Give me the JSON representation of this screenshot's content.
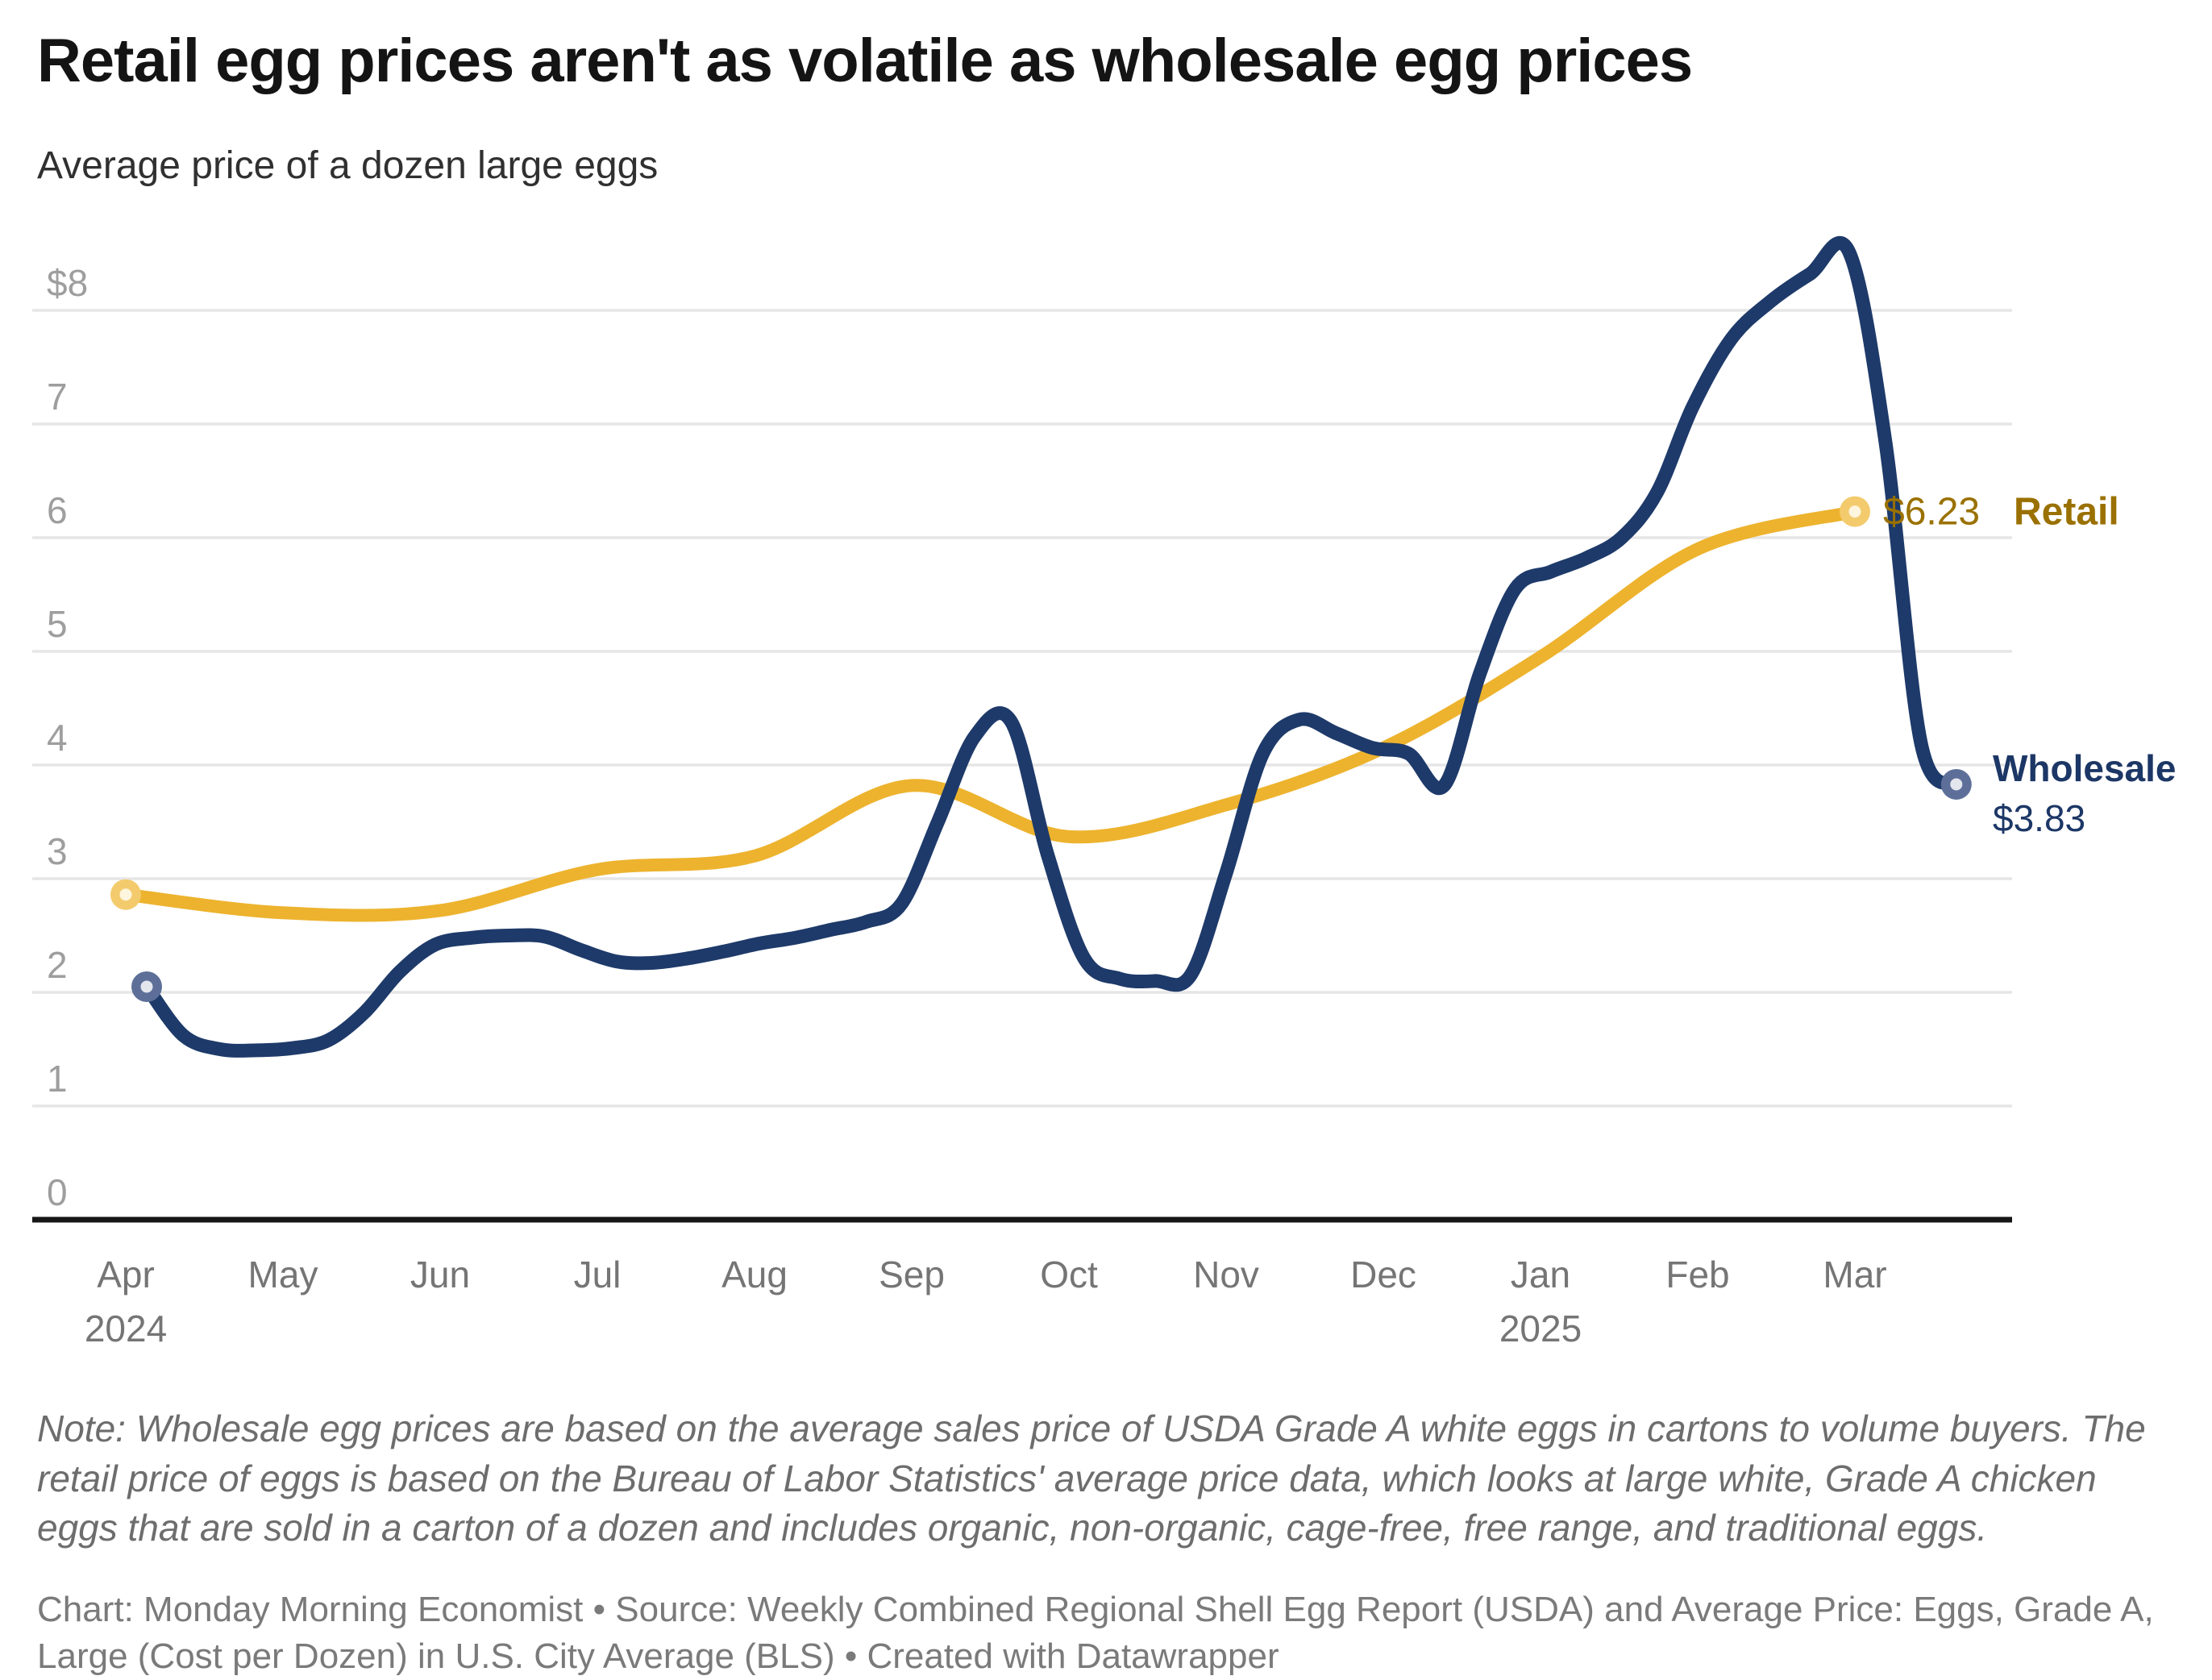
{
  "header": {
    "title": "Retail egg prices aren't as volatile as wholesale egg prices",
    "subtitle": "Average price of a dozen large eggs"
  },
  "chart_data": {
    "type": "line",
    "title": "Retail egg prices aren't as volatile as wholesale egg prices",
    "subtitle": "Average price of a dozen large eggs",
    "unit": "US dollars per dozen large eggs",
    "grid": "horizontal",
    "ylim": [
      0,
      8.6
    ],
    "y_axis": {
      "ticks": [
        0,
        1,
        2,
        3,
        4,
        5,
        6,
        7,
        8
      ],
      "labels": [
        "0",
        "1",
        "2",
        "3",
        "4",
        "5",
        "6",
        "7",
        "$8"
      ]
    },
    "x_axis": {
      "months": [
        {
          "label": "Apr",
          "year": "2024"
        },
        {
          "label": "May",
          "year": ""
        },
        {
          "label": "Jun",
          "year": ""
        },
        {
          "label": "Jul",
          "year": ""
        },
        {
          "label": "Aug",
          "year": ""
        },
        {
          "label": "Sep",
          "year": ""
        },
        {
          "label": "Oct",
          "year": ""
        },
        {
          "label": "Nov",
          "year": ""
        },
        {
          "label": "Dec",
          "year": ""
        },
        {
          "label": "Jan",
          "year": "2025"
        },
        {
          "label": "Feb",
          "year": ""
        },
        {
          "label": "Mar",
          "year": ""
        }
      ]
    },
    "series": [
      {
        "name": "Retail",
        "frequency": "monthly",
        "color": "#edb32e",
        "dot_ring_color": "#f3cb6d",
        "dot_core_color": "#fdf5de",
        "label_color": "#9a7100",
        "end_label_value": "$6.23",
        "end_label_name": "Retail",
        "points": [
          [
            "2024-04",
            2.86
          ],
          [
            "2024-05",
            2.7
          ],
          [
            "2024-06",
            2.72
          ],
          [
            "2024-07",
            3.08
          ],
          [
            "2024-08",
            3.2
          ],
          [
            "2024-09",
            3.82
          ],
          [
            "2024-10",
            3.37
          ],
          [
            "2024-11",
            3.65
          ],
          [
            "2024-12",
            4.15
          ],
          [
            "2025-01",
            4.95
          ],
          [
            "2025-02",
            5.9
          ],
          [
            "2025-03",
            6.23
          ]
        ]
      },
      {
        "name": "Wholesale",
        "frequency": "weekly",
        "color": "#1e3a6a",
        "dot_ring_color": "#5d6f99",
        "dot_core_color": "#e4e6ee",
        "label_color": "#1c3766",
        "end_label_value": "$3.83",
        "end_label_name": "Wholesale",
        "points": [
          [
            "2024-04-05",
            2.05
          ],
          [
            "2024-04-12",
            1.62
          ],
          [
            "2024-04-19",
            1.5
          ],
          [
            "2024-04-26",
            1.49
          ],
          [
            "2024-05-03",
            1.51
          ],
          [
            "2024-05-10",
            1.58
          ],
          [
            "2024-05-17",
            1.82
          ],
          [
            "2024-05-24",
            2.18
          ],
          [
            "2024-05-31",
            2.42
          ],
          [
            "2024-06-07",
            2.48
          ],
          [
            "2024-06-14",
            2.5
          ],
          [
            "2024-06-21",
            2.49
          ],
          [
            "2024-06-28",
            2.37
          ],
          [
            "2024-07-05",
            2.27
          ],
          [
            "2024-07-12",
            2.26
          ],
          [
            "2024-07-19",
            2.3
          ],
          [
            "2024-07-26",
            2.36
          ],
          [
            "2024-08-02",
            2.43
          ],
          [
            "2024-08-09",
            2.48
          ],
          [
            "2024-08-16",
            2.55
          ],
          [
            "2024-08-23",
            2.62
          ],
          [
            "2024-08-30",
            2.78
          ],
          [
            "2024-09-06",
            3.5
          ],
          [
            "2024-09-13",
            4.25
          ],
          [
            "2024-09-20",
            4.38
          ],
          [
            "2024-09-27",
            3.2
          ],
          [
            "2024-10-04",
            2.3
          ],
          [
            "2024-10-11",
            2.12
          ],
          [
            "2024-10-18",
            2.1
          ],
          [
            "2024-10-25",
            2.15
          ],
          [
            "2024-11-01",
            3.05
          ],
          [
            "2024-11-08",
            4.1
          ],
          [
            "2024-11-15",
            4.4
          ],
          [
            "2024-11-22",
            4.28
          ],
          [
            "2024-11-29",
            4.15
          ],
          [
            "2024-12-06",
            4.1
          ],
          [
            "2024-12-13",
            3.82
          ],
          [
            "2024-12-20",
            4.8
          ],
          [
            "2024-12-27",
            5.55
          ],
          [
            "2025-01-03",
            5.7
          ],
          [
            "2025-01-10",
            5.82
          ],
          [
            "2025-01-17",
            6.0
          ],
          [
            "2025-01-24",
            6.4
          ],
          [
            "2025-01-31",
            7.15
          ],
          [
            "2025-02-07",
            7.75
          ],
          [
            "2025-02-14",
            8.08
          ],
          [
            "2025-02-21",
            8.32
          ],
          [
            "2025-02-28",
            8.51
          ],
          [
            "2025-03-07",
            6.85
          ],
          [
            "2025-03-14",
            4.2
          ],
          [
            "2025-03-21",
            3.83
          ]
        ]
      }
    ],
    "legend_position": "right-of-line-ends"
  },
  "footer": {
    "note": "Note: Wholesale egg prices are based on the average sales price of USDA Grade A white eggs in cartons to volume buyers. The retail price of eggs is based on the Bureau of Labor Statistics' average price data, which looks at large white, Grade A chicken eggs that are sold in a carton of a dozen and includes organic, non-organic, cage-free, free range, and traditional eggs.",
    "credit": "Chart: Monday Morning Economist • Source: Weekly Combined Regional Shell Egg Report (USDA) and Average Price: Eggs, Grade A, Large (Cost per Dozen) in U.S. City Average (BLS) • Created with Datawrapper"
  },
  "colors": {
    "grid": "#e6e6e6",
    "axis": "#161616",
    "y_label": "#9e9e9e",
    "x_label": "#757575"
  }
}
